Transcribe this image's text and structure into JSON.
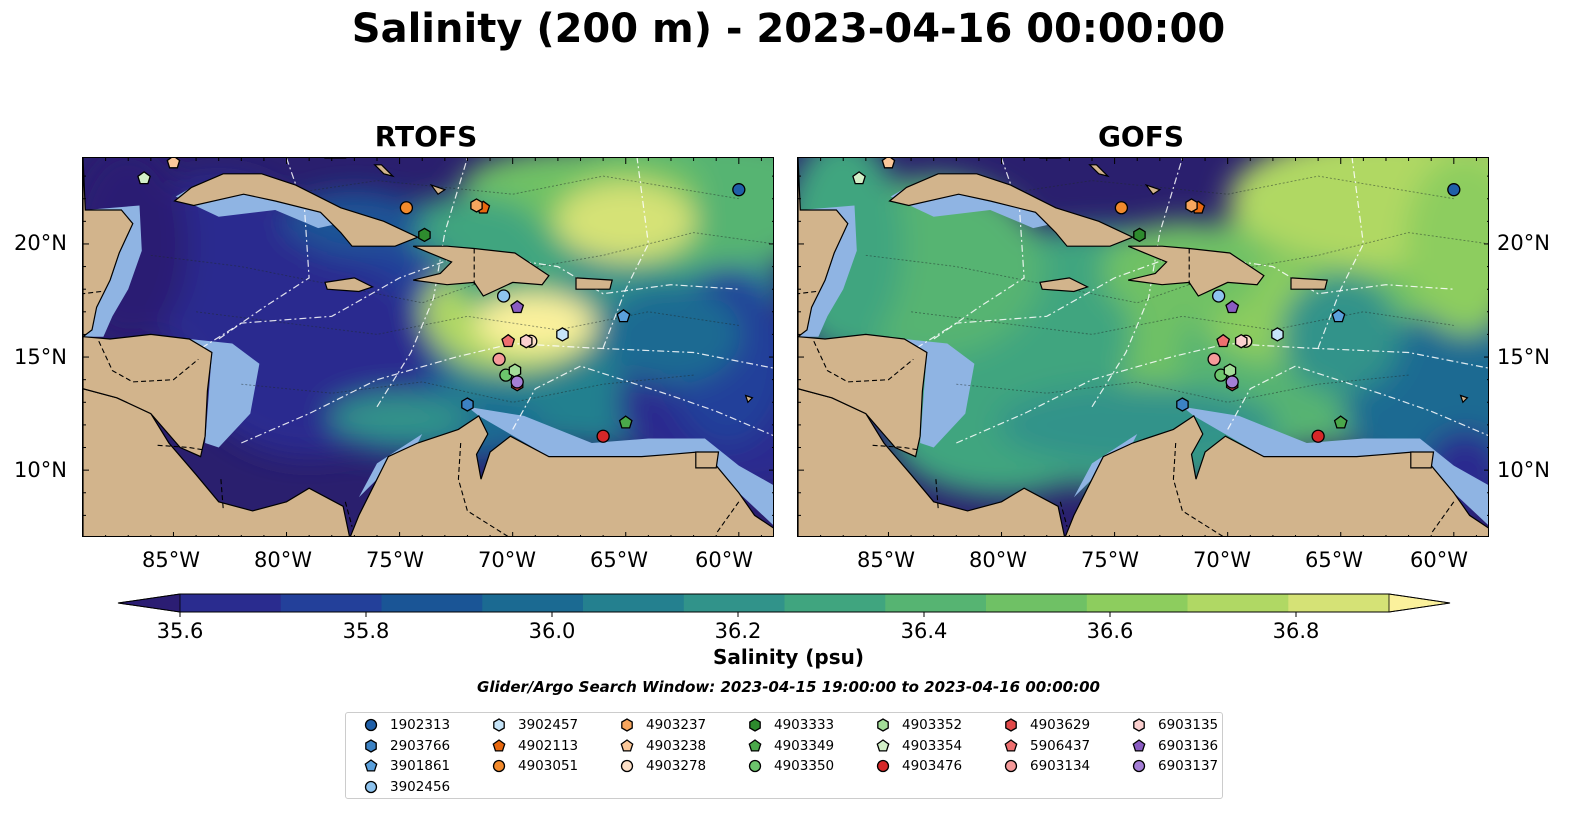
{
  "title": "Salinity (200 m) - 2023-04-16 00:00:00",
  "panels": {
    "left_title": "RTOFS",
    "right_title": "GOFS"
  },
  "lat_labels": [
    "20°N",
    "15°N",
    "10°N"
  ],
  "lon_labels": [
    "85°W",
    "80°W",
    "75°W",
    "70°W",
    "65°W",
    "60°W"
  ],
  "colorbar": {
    "label": "Salinity (psu)",
    "ticks": [
      "35.6",
      "35.8",
      "36.0",
      "36.2",
      "36.4",
      "36.6",
      "36.8"
    ],
    "colors": [
      "#2b1d73",
      "#2a2c8f",
      "#23409a",
      "#1a5596",
      "#1b6a92",
      "#24808f",
      "#31938a",
      "#40a57f",
      "#56b472",
      "#6fc165",
      "#8dcd5e",
      "#b0d864",
      "#d5e276",
      "#fbf19c"
    ],
    "min": 35.6,
    "max": 36.9
  },
  "search_window": "Glider/Argo Search Window: 2023-04-15 19:00:00 to 2023-04-16 00:00:00",
  "legend": [
    {
      "id": "1902313",
      "shape": "circle",
      "color": "#1f5fa8"
    },
    {
      "id": "2903766",
      "shape": "hexagon",
      "color": "#3c82c4"
    },
    {
      "id": "3901861",
      "shape": "pentagon",
      "color": "#5aa0dc"
    },
    {
      "id": "3902456",
      "shape": "circle",
      "color": "#8ec3ee"
    },
    {
      "id": "3902457",
      "shape": "hexagon",
      "color": "#c6e4f8"
    },
    {
      "id": "4902113",
      "shape": "pentagon",
      "color": "#e8680f"
    },
    {
      "id": "4903051",
      "shape": "circle",
      "color": "#f28a2c"
    },
    {
      "id": "4903237",
      "shape": "hexagon",
      "color": "#f7a65e"
    },
    {
      "id": "4903238",
      "shape": "pentagon",
      "color": "#fbc89a"
    },
    {
      "id": "4903278",
      "shape": "circle",
      "color": "#fde0c8"
    },
    {
      "id": "4903333",
      "shape": "hexagon",
      "color": "#2e8b2e"
    },
    {
      "id": "4903349",
      "shape": "pentagon",
      "color": "#4aa84a"
    },
    {
      "id": "4903350",
      "shape": "circle",
      "color": "#6cc46c"
    },
    {
      "id": "4903352",
      "shape": "hexagon",
      "color": "#a3dd98"
    },
    {
      "id": "4903354",
      "shape": "pentagon",
      "color": "#d3f0c8"
    },
    {
      "id": "4903476",
      "shape": "circle",
      "color": "#d62728"
    },
    {
      "id": "4903629",
      "shape": "hexagon",
      "color": "#e24a4a"
    },
    {
      "id": "5906437",
      "shape": "pentagon",
      "color": "#ee6f6f"
    },
    {
      "id": "6903134",
      "shape": "circle",
      "color": "#f59a9a"
    },
    {
      "id": "6903135",
      "shape": "hexagon",
      "color": "#fbd0cf"
    },
    {
      "id": "6903136",
      "shape": "pentagon",
      "color": "#8a5cc2"
    },
    {
      "id": "6903137",
      "shape": "circle",
      "color": "#a57fd6"
    }
  ],
  "markers": [
    {
      "id": "1902313",
      "lon": -60.0,
      "lat": 22.4
    },
    {
      "id": "2903766",
      "lon": -72.0,
      "lat": 12.9
    },
    {
      "id": "3901861",
      "lon": -65.1,
      "lat": 16.8
    },
    {
      "id": "3902456",
      "lon": -70.4,
      "lat": 17.7
    },
    {
      "id": "3902457",
      "lon": -67.8,
      "lat": 16.0
    },
    {
      "id": "4902113",
      "lon": -71.3,
      "lat": 21.6
    },
    {
      "id": "4903051",
      "lon": -74.7,
      "lat": 21.6
    },
    {
      "id": "4903237",
      "lon": -71.6,
      "lat": 21.7
    },
    {
      "id": "4903238",
      "lon": -85.0,
      "lat": 23.6
    },
    {
      "id": "4903278",
      "lon": -69.2,
      "lat": 15.7
    },
    {
      "id": "4903333",
      "lon": -73.9,
      "lat": 20.4
    },
    {
      "id": "4903349",
      "lon": -65.0,
      "lat": 12.1
    },
    {
      "id": "4903350",
      "lon": -70.3,
      "lat": 14.2
    },
    {
      "id": "4903352",
      "lon": -69.9,
      "lat": 14.4
    },
    {
      "id": "4903354",
      "lon": -86.3,
      "lat": 22.9
    },
    {
      "id": "4903476",
      "lon": -66.0,
      "lat": 11.5
    },
    {
      "id": "4903629",
      "lon": -69.8,
      "lat": 13.8
    },
    {
      "id": "5906437",
      "lon": -70.2,
      "lat": 15.7
    },
    {
      "id": "6903134",
      "lon": -70.6,
      "lat": 14.9
    },
    {
      "id": "6903135",
      "lon": -69.4,
      "lat": 15.7
    },
    {
      "id": "6903136",
      "lon": -69.8,
      "lat": 17.2
    },
    {
      "id": "6903137",
      "lon": -69.8,
      "lat": 13.9
    }
  ],
  "colors": {
    "land": "#d2b48c",
    "shelf": "#8fb4e3",
    "deep": "#2a1f6e"
  }
}
